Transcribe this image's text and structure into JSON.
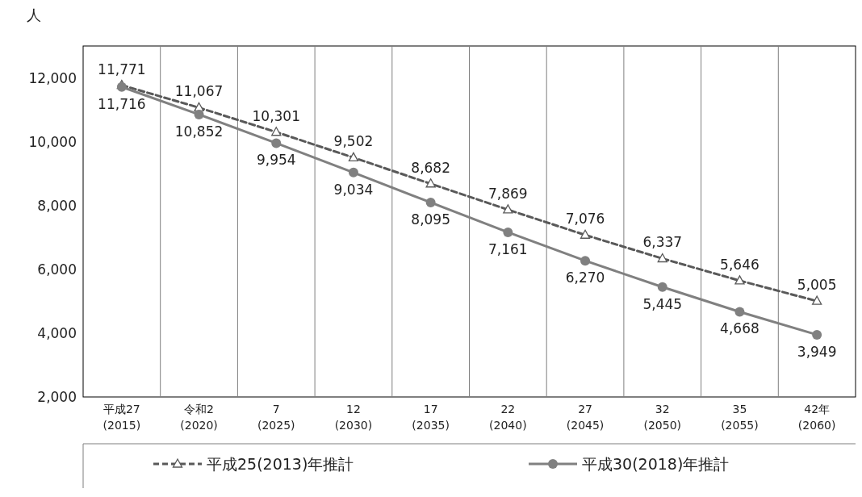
{
  "chart_data": {
    "type": "line",
    "ylabel": "人",
    "categories": [
      "平成27\n(2015)",
      "令和2\n(2020)",
      "7\n(2025)",
      "12\n(2030)",
      "17\n(2035)",
      "22\n(2040)",
      "27\n(2045)",
      "32\n(2050)",
      "35\n(2055)",
      "42年\n(2060)"
    ],
    "series": [
      {
        "name": "平成25(2013)年推計",
        "color": "#595959",
        "marker": "triangle",
        "line_style": "dashed",
        "values": [
          11771,
          11067,
          10301,
          9502,
          8682,
          7869,
          7076,
          6337,
          5646,
          5005
        ],
        "value_labels": [
          "11,771",
          "11,067",
          "10,301",
          "9,502",
          "8,682",
          "7,869",
          "7,076",
          "6,337",
          "5,646",
          "5,005"
        ]
      },
      {
        "name": "平成30(2018)年推計",
        "color": "#808080",
        "marker": "circle",
        "line_style": "solid",
        "values": [
          11716,
          10852,
          9954,
          9034,
          8095,
          7161,
          6270,
          5445,
          4668,
          3949
        ],
        "value_labels": [
          "11,716",
          "10,852",
          "9,954",
          "9,034",
          "8,095",
          "7,161",
          "6,270",
          "5,445",
          "4,668",
          "3,949"
        ]
      }
    ],
    "ylim": [
      2000,
      13000
    ],
    "yticks": [
      {
        "value": 2000,
        "label": "2,000"
      },
      {
        "value": 4000,
        "label": "4,000"
      },
      {
        "value": 6000,
        "label": "6,000"
      },
      {
        "value": 8000,
        "label": "8,000"
      },
      {
        "value": 10000,
        "label": "10,000"
      },
      {
        "value": 12000,
        "label": "12,000"
      }
    ],
    "grid": "x",
    "legend": "bottom"
  }
}
